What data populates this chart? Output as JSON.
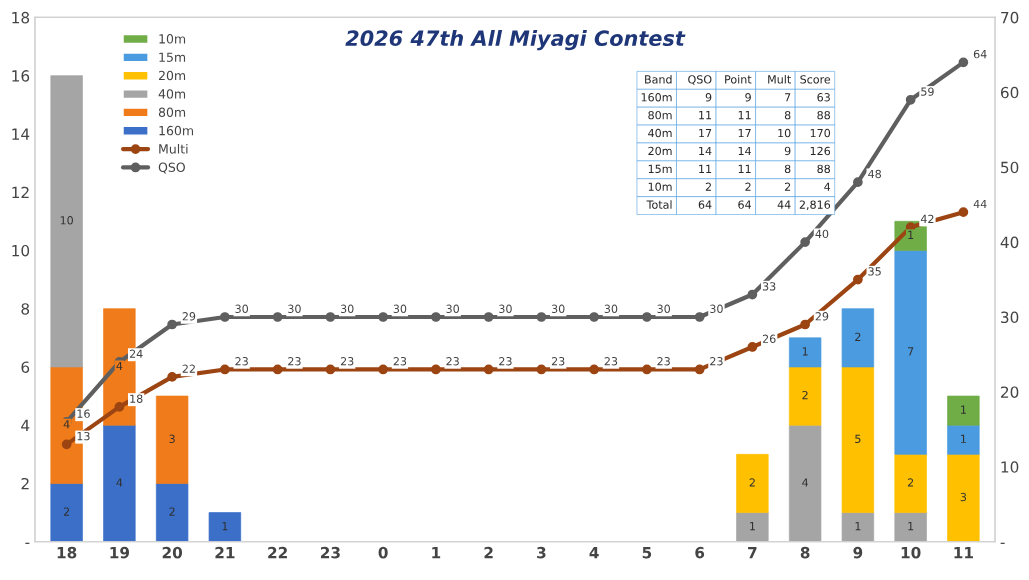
{
  "chart_data": {
    "type": "bar",
    "title": "2026 47th All Miyagi Contest",
    "categories": [
      "18",
      "19",
      "20",
      "21",
      "22",
      "23",
      "0",
      "1",
      "2",
      "3",
      "4",
      "5",
      "6",
      "7",
      "8",
      "9",
      "10",
      "11"
    ],
    "stacked": true,
    "series": [
      {
        "name": "160m",
        "color": "#3b6fc8",
        "values": [
          2,
          4,
          2,
          1,
          null,
          null,
          null,
          null,
          null,
          null,
          null,
          null,
          null,
          null,
          null,
          null,
          null,
          null
        ]
      },
      {
        "name": "80m",
        "color": "#ef7b1a",
        "values": [
          4,
          4,
          3,
          null,
          null,
          null,
          null,
          null,
          null,
          null,
          null,
          null,
          null,
          null,
          null,
          null,
          null,
          null
        ]
      },
      {
        "name": "40m",
        "color": "#a5a5a5",
        "values": [
          10,
          null,
          null,
          null,
          null,
          null,
          null,
          null,
          null,
          null,
          null,
          null,
          null,
          1,
          4,
          1,
          1,
          null
        ]
      },
      {
        "name": "20m",
        "color": "#ffc000",
        "values": [
          null,
          null,
          null,
          null,
          null,
          null,
          null,
          null,
          null,
          null,
          null,
          null,
          null,
          2,
          2,
          5,
          2,
          3
        ]
      },
      {
        "name": "15m",
        "color": "#4a9be0",
        "values": [
          null,
          null,
          null,
          null,
          null,
          null,
          null,
          null,
          null,
          null,
          null,
          null,
          null,
          null,
          1,
          2,
          7,
          1
        ]
      },
      {
        "name": "10m",
        "color": "#70ad47",
        "values": [
          null,
          null,
          null,
          null,
          null,
          null,
          null,
          null,
          null,
          null,
          null,
          null,
          null,
          null,
          null,
          null,
          1,
          1
        ]
      },
      {
        "name": "Multi",
        "type": "line",
        "axis": "y2",
        "color": "#9c4512",
        "marker": "circle",
        "values": [
          13,
          18,
          22,
          23,
          23,
          23,
          23,
          23,
          23,
          23,
          23,
          23,
          23,
          26,
          29,
          35,
          42,
          44
        ]
      },
      {
        "name": "QSO",
        "type": "line",
        "axis": "y2",
        "color": "#5f5f5f",
        "marker": "circle",
        "values": [
          16,
          24,
          29,
          30,
          30,
          30,
          30,
          30,
          30,
          30,
          30,
          30,
          30,
          33,
          40,
          48,
          59,
          64
        ]
      }
    ],
    "ylim": [
      0,
      18
    ],
    "yticks": [
      {
        "value": 0,
        "label": "-"
      },
      2,
      4,
      6,
      8,
      10,
      12,
      14,
      16,
      18
    ],
    "y2lim": [
      0,
      70
    ],
    "y2ticks": [
      {
        "value": 0,
        "label": "-"
      },
      10,
      20,
      30,
      40,
      50,
      60,
      70
    ],
    "data_labels": true,
    "grid": false,
    "legend": "top left",
    "annotations": [
      "Band",
      "QSO",
      "Point",
      "Mult",
      "Score",
      "160m",
      "9",
      "9",
      "7",
      "63",
      "80m",
      "11",
      "11",
      "8",
      "88",
      "40m",
      "17",
      "17",
      "10",
      "170",
      "20m",
      "14",
      "14",
      "9",
      "126",
      "15m",
      "11",
      "11",
      "8",
      "88",
      "10m",
      "2",
      "2",
      "2",
      "4",
      "Total",
      "64",
      "64",
      "44",
      "2,816"
    ]
  }
}
